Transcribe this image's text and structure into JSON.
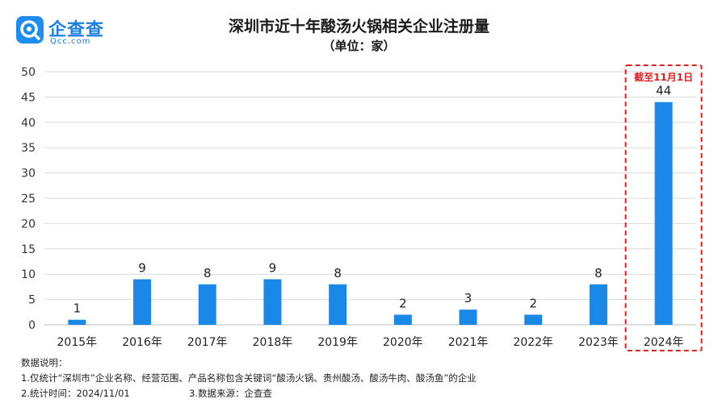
{
  "logo": {
    "name": "企查查",
    "sub": "Qcc.com",
    "mark_color": "#1d8df0"
  },
  "title": "深圳市近十年酸汤火锅相关企业注册量",
  "subtitle": "（单位：家）",
  "chart_data": {
    "type": "bar",
    "categories": [
      "2015年",
      "2016年",
      "2017年",
      "2018年",
      "2019年",
      "2020年",
      "2021年",
      "2022年",
      "2023年",
      "2024年"
    ],
    "values": [
      1,
      9,
      8,
      9,
      8,
      2,
      3,
      2,
      8,
      44
    ],
    "ylim": [
      0,
      50
    ],
    "yticks": [
      0,
      5,
      10,
      15,
      20,
      25,
      30,
      35,
      40,
      45,
      50
    ],
    "grid": true,
    "bar_color": "#1a88e8",
    "annotation": {
      "category": "2024年",
      "text": "截至11月1日",
      "color": "#e02020"
    }
  },
  "notes": {
    "heading": "数据说明：",
    "line1": "1.仅统计“深圳市”企业名称、经营范围、产品名称包含关键词“酸汤火锅、贵州酸汤、酸汤牛肉、酸汤鱼”的企业",
    "line2a": "2.统计时间：2024/11/01",
    "line2b": "3.数据来源：企查查"
  }
}
